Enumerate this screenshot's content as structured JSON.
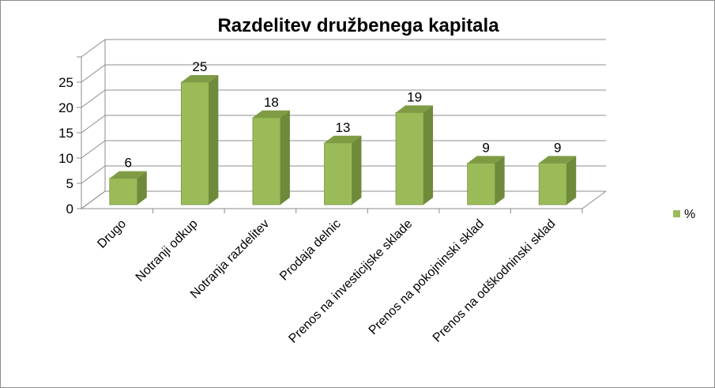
{
  "chart_data": {
    "type": "bar",
    "title": "Razdelitev družbenega kapitala",
    "categories": [
      "Drugo",
      "Notranji odkup",
      "Notranja razdelitev",
      "Prodaja delnic",
      "Prenos na investicijske sklade",
      "Prenos na pokojninski sklad",
      "Prenos na odškodninski sklad"
    ],
    "series": [
      {
        "name": "%",
        "values": [
          6,
          25,
          18,
          13,
          19,
          9,
          9
        ]
      }
    ],
    "yticks": [
      0,
      5,
      10,
      15,
      20,
      25
    ],
    "ylim": [
      0,
      30
    ],
    "xlabel": "",
    "ylabel": "",
    "grid": true,
    "legend_position": "right",
    "colors": {
      "bar_front": "#9bbb59",
      "bar_side": "#6f8a3a",
      "bar_top": "#7f9c45",
      "grid": "#8c8c8c"
    }
  }
}
